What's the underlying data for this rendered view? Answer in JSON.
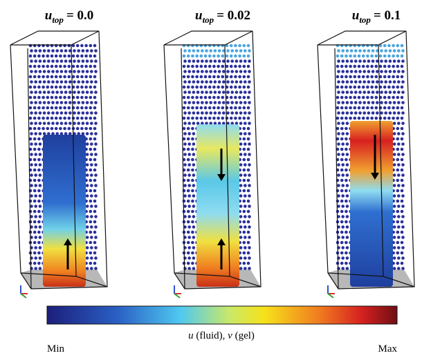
{
  "panels": [
    {
      "symbol": "u",
      "subscript": "top",
      "value": "= 0.0"
    },
    {
      "symbol": "u",
      "subscript": "top",
      "value": "= 0.02"
    },
    {
      "symbol": "u",
      "subscript": "top",
      "value": "= 0.1"
    }
  ],
  "colorbar": {
    "min_label": "Min",
    "max_label": "Max",
    "label": [
      "u",
      "(fluid),",
      "v",
      "(gel)"
    ]
  }
}
